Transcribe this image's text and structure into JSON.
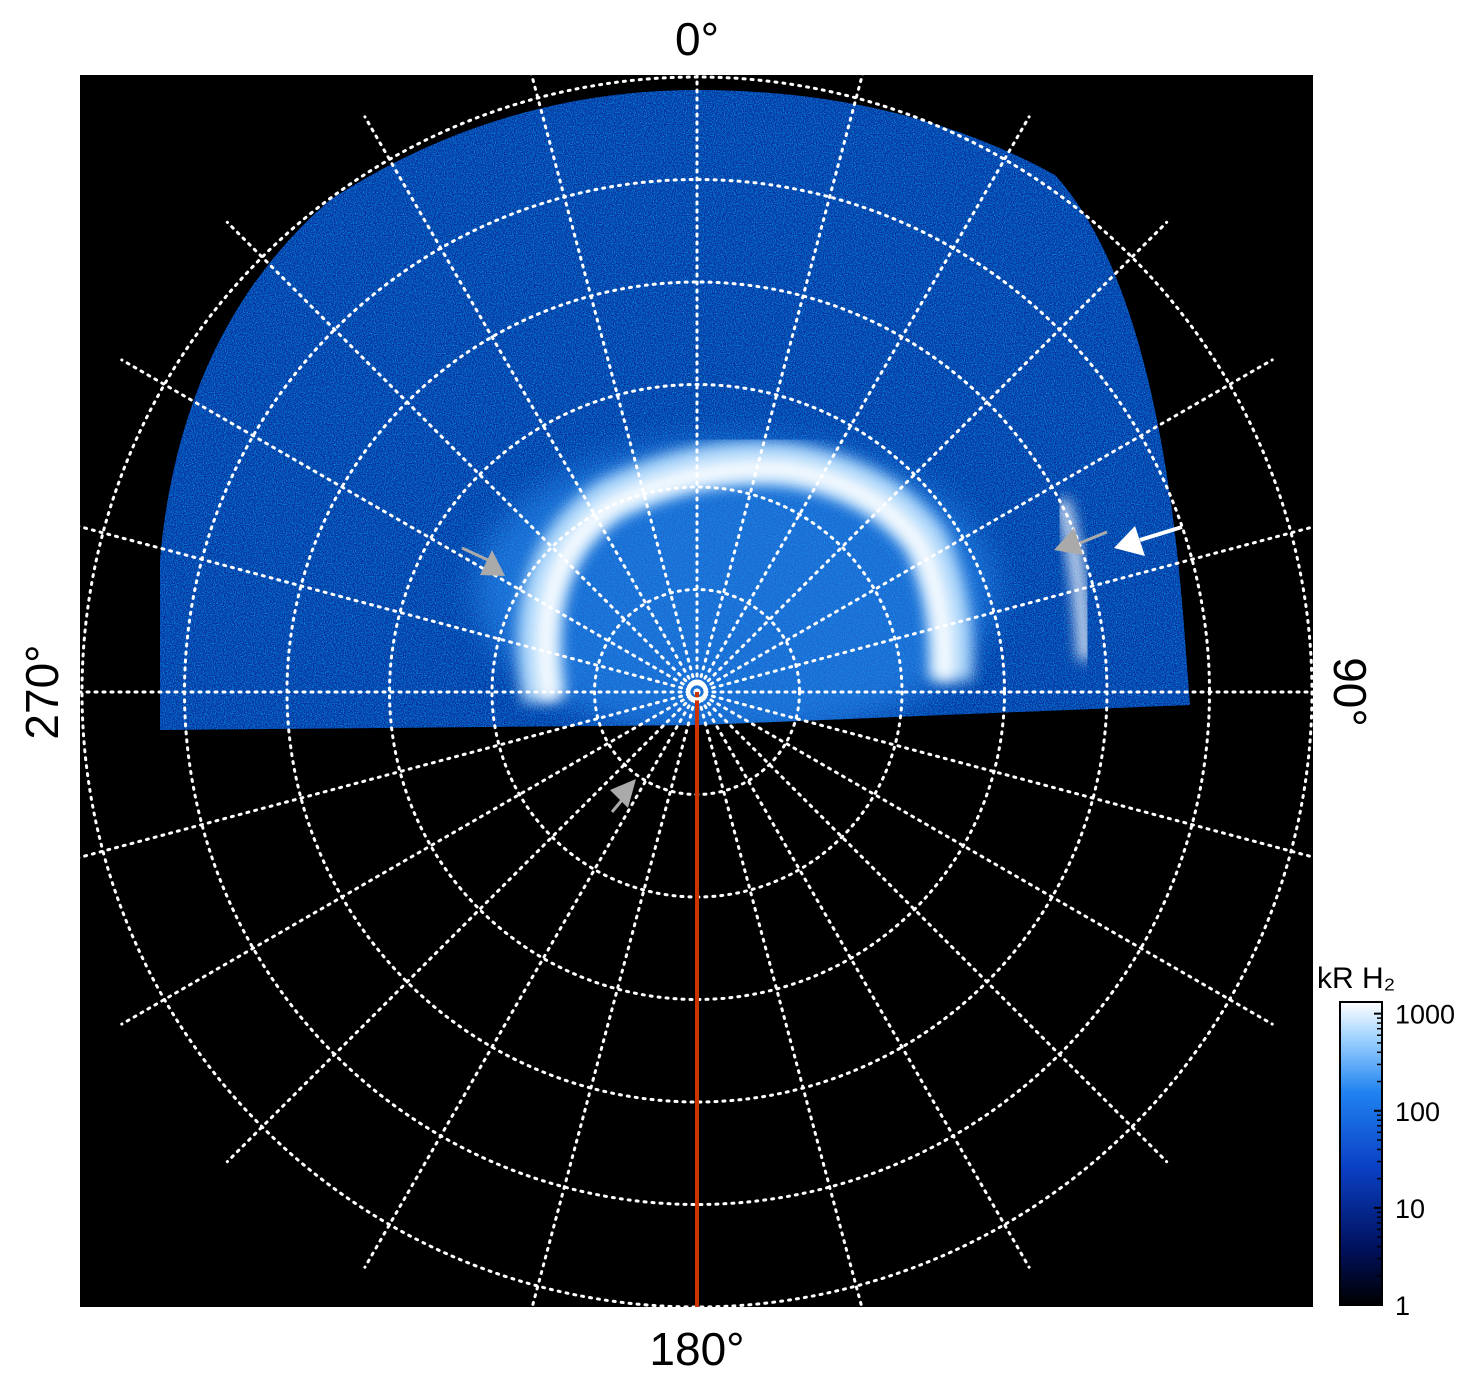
{
  "chart_data": {
    "type": "heatmap",
    "title": "",
    "projection": "polar",
    "angle_labels": {
      "top": "0°",
      "right": "90°",
      "bottom": "180°",
      "left": "270°"
    },
    "colorbar": {
      "title": "kR H₂",
      "scale": "log",
      "range": [
        1,
        1000
      ],
      "ticks": [
        {
          "value": 1,
          "label": "1"
        },
        {
          "value": 10,
          "label": "10"
        },
        {
          "value": 100,
          "label": "100"
        },
        {
          "value": 1000,
          "label": "1000"
        }
      ],
      "colors": [
        "#000000",
        "#00105a",
        "#0a3fc4",
        "#1f82f0",
        "#9fd2ff",
        "#ffffff"
      ]
    },
    "grid": {
      "style": "dotted",
      "color": "#ffffff",
      "radial_spokes_deg": 15,
      "ring_count": 6
    },
    "background": "#000000",
    "meridian_line_color": "#cc3300",
    "annotations": [
      {
        "type": "arrow",
        "color": "#aaaaaa",
        "description": "pointing at left edge of main oval"
      },
      {
        "type": "arrow",
        "color": "#aaaaaa",
        "description": "pointing at outer arc on right"
      },
      {
        "type": "arrow",
        "color": "#ffffff",
        "description": "pointing at outer arc on right"
      },
      {
        "type": "arrow",
        "color": "#aaaaaa",
        "description": "below pole"
      }
    ]
  }
}
